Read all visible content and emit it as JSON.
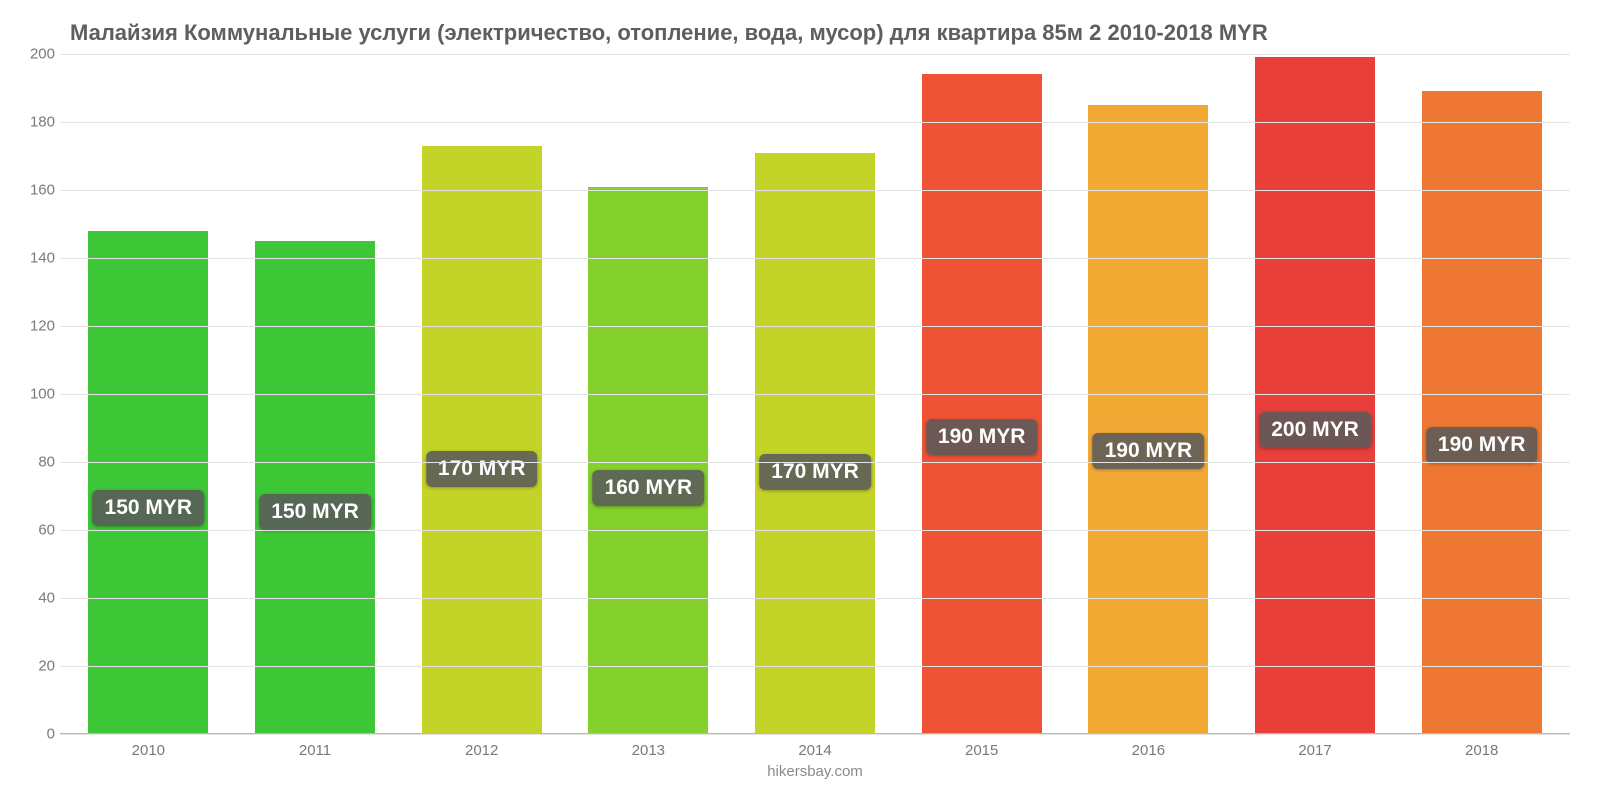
{
  "chart": {
    "type": "bar",
    "title": "Малайзия Коммунальные услуги (электричество, отопление, вода, мусор) для квартира 85м 2 2010-2018 MYR",
    "title_fontsize": 22,
    "title_color": "#5e5e5e",
    "source": "hikersbay.com",
    "background_color": "#ffffff",
    "grid_color": "#e4e4e4",
    "axis_label_color": "#7a7a7a",
    "axis_label_fontsize": 15,
    "ylim": [
      0,
      200
    ],
    "ytick_step": 20,
    "yticks": [
      0,
      20,
      40,
      60,
      80,
      100,
      120,
      140,
      160,
      180,
      200
    ],
    "bar_width_pct": 72,
    "bar_label_fontsize": 21,
    "bar_label_bg": "rgba(90,90,90,0.88)",
    "bar_label_color": "#ffffff",
    "categories": [
      "2010",
      "2011",
      "2012",
      "2013",
      "2014",
      "2015",
      "2016",
      "2017",
      "2018"
    ],
    "values": [
      148,
      145,
      173,
      161,
      171,
      194,
      185,
      199,
      189
    ],
    "bar_labels": [
      "150 MYR",
      "150 MYR",
      "170 MYR",
      "160 MYR",
      "170 MYR",
      "190 MYR",
      "190 MYR",
      "200 MYR",
      "190 MYR"
    ],
    "bar_colors": [
      "#3dc635",
      "#3dc635",
      "#c4d328",
      "#84d02c",
      "#c4d328",
      "#ee5336",
      "#f2a934",
      "#e83f3b",
      "#ed7733"
    ],
    "bar_label_positions_pct": [
      55,
      55,
      55,
      55,
      55,
      55,
      55,
      55,
      55
    ]
  }
}
